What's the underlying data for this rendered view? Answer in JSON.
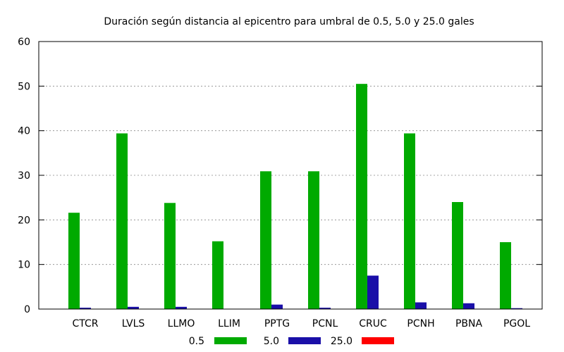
{
  "chart_data": {
    "type": "bar",
    "title": "Duración según distancia al epicentro para umbral de 0.5, 5.0 y 25.0 gales",
    "xlabel": "",
    "ylabel": "",
    "ylim": [
      0,
      60
    ],
    "yticks": [
      0,
      10,
      20,
      30,
      40,
      50,
      60
    ],
    "grid": true,
    "legend_position": "bottom",
    "categories": [
      "CTCR",
      "LVLS",
      "LLMO",
      "LLIM",
      "PPTG",
      "PCNL",
      "CRUC",
      "PCNH",
      "PBNA",
      "PGOL"
    ],
    "series": [
      {
        "name": "0.5",
        "color": "#00aa00",
        "values": [
          21.6,
          39.4,
          23.8,
          15.2,
          30.9,
          30.9,
          50.5,
          39.4,
          24.0,
          15.0
        ]
      },
      {
        "name": "5.0",
        "color": "#1a0fa8",
        "values": [
          0.3,
          0.5,
          0.5,
          0.0,
          1.0,
          0.3,
          7.5,
          1.5,
          1.3,
          0.2
        ]
      },
      {
        "name": "25.0",
        "color": "#ff0000",
        "values": [
          0,
          0,
          0,
          0,
          0,
          0,
          0,
          0,
          0,
          0
        ]
      }
    ]
  }
}
